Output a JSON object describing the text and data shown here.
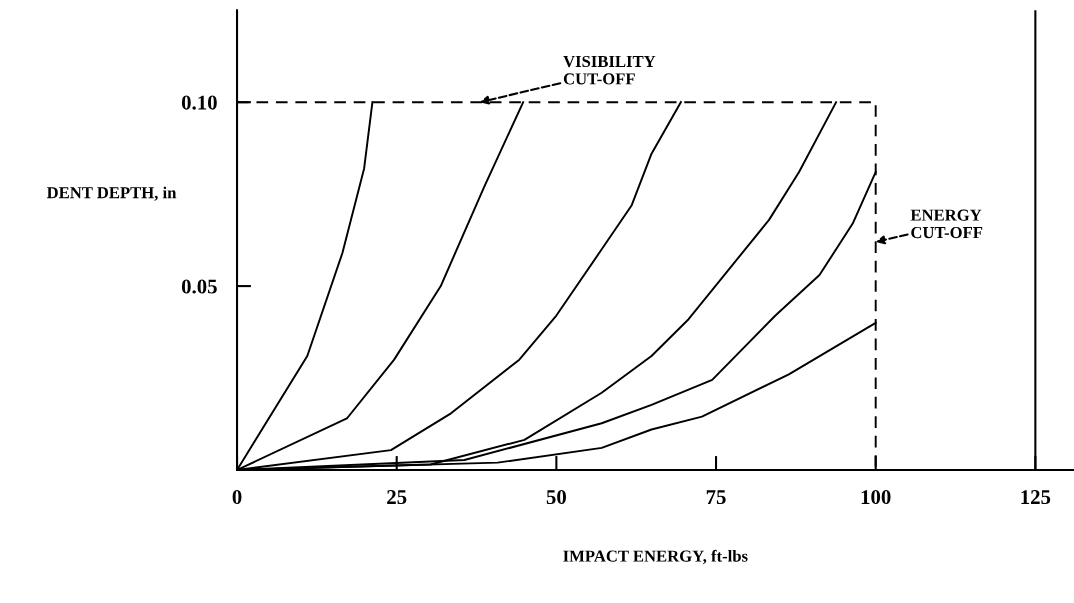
{
  "chart_data": {
    "type": "line",
    "xlabel": "IMPACT ENERGY, ft-lbs",
    "ylabel": "DENT DEPTH, in",
    "xlim": [
      0,
      131
    ],
    "ylim": [
      0,
      0.125
    ],
    "xticks": [
      0,
      25,
      50,
      75,
      100,
      125
    ],
    "yticks": [
      {
        "value": 0.05,
        "label": "0.05"
      },
      {
        "value": 0.1,
        "label": "0.10"
      }
    ],
    "grid": false,
    "marker": "none",
    "series": [
      {
        "color": "#000000",
        "x": [
          0,
          11.0,
          16.5,
          19.9,
          21.2
        ],
        "values": [
          0,
          0.031,
          0.059,
          0.082,
          0.1
        ]
      },
      {
        "color": "#000000",
        "x": [
          0,
          17.2,
          24.6,
          31.9,
          38.7,
          44.8
        ],
        "values": [
          0,
          0.014,
          0.03,
          0.05,
          0.077,
          0.1
        ]
      },
      {
        "color": "#000000",
        "x": [
          0,
          24.1,
          33.5,
          44.2,
          50.0,
          57.1,
          61.8,
          64.9,
          69.5
        ],
        "values": [
          0,
          0.0054,
          0.0154,
          0.03,
          0.042,
          0.06,
          0.072,
          0.086,
          0.1
        ]
      },
      {
        "color": "#000000",
        "x": [
          0,
          30.3,
          45.0,
          57.1,
          64.9,
          70.7,
          83.3,
          88.0,
          93.8
        ],
        "values": [
          0,
          0.0015,
          0.0082,
          0.021,
          0.031,
          0.041,
          0.068,
          0.081,
          0.1
        ]
      },
      {
        "color": "#000000",
        "x": [
          0,
          35.6,
          57.1,
          64.9,
          74.4,
          84.3,
          91.2,
          96.4,
          100
        ],
        "values": [
          0,
          0.0027,
          0.0127,
          0.0177,
          0.0245,
          0.042,
          0.053,
          0.067,
          0.081
        ]
      },
      {
        "color": "#000000",
        "x": [
          0,
          40.8,
          57.1,
          64.9,
          72.8,
          86.4,
          100
        ],
        "values": [
          0,
          0.002,
          0.006,
          0.011,
          0.0145,
          0.026,
          0.04
        ]
      },
      {
        "color": "#000000",
        "line_style": "dashed",
        "x": [
          0,
          100,
          100
        ],
        "values": [
          0.1,
          0.1,
          0
        ]
      }
    ],
    "ref_lines": [
      {
        "axis": "x",
        "value": 125,
        "color": "#000000"
      }
    ],
    "annotations": [
      {
        "text": "VISIBILITY\nCUT-OFF",
        "x": 38,
        "y": 0.1
      },
      {
        "text": "ENERGY\nCUT-OFF",
        "x": 100,
        "y": 0.062
      }
    ]
  }
}
